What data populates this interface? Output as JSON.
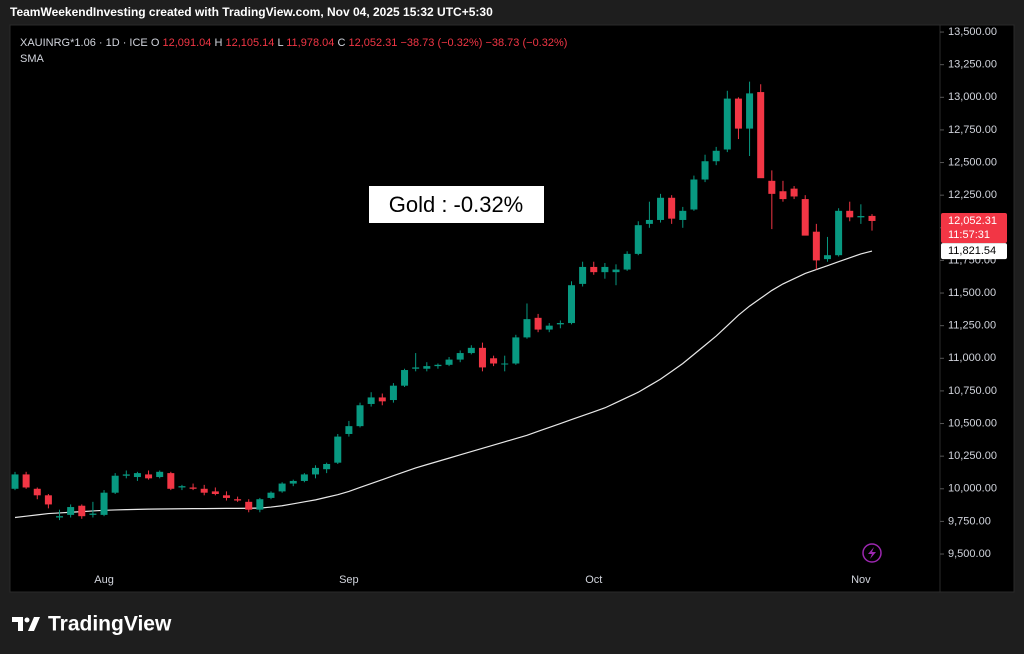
{
  "header": "TeamWeekendInvesting created with TradingView.com, Nov 04, 2025 15:32 UTC+5:30",
  "footer": "TradingView",
  "chart_data": {
    "type": "candlestick",
    "symbol": "XAUINRG*1.06 · 1D · ICE",
    "legend": [
      {
        "label": "O",
        "value": "12,091.04"
      },
      {
        "label": "H",
        "value": "12,105.14"
      },
      {
        "label": "L",
        "value": "11,978.04"
      },
      {
        "label": "C",
        "value": "12,052.31"
      }
    ],
    "change": [
      "−38.73 (−0.32%)",
      "−38.73 (−0.32%)"
    ],
    "annotation": "Gold : -0.32%",
    "up_color": "#089981",
    "down_color": "#f23645",
    "categories": [
      null,
      null,
      null,
      null,
      null,
      null,
      null,
      null,
      "Aug",
      null,
      null,
      null,
      null,
      null,
      null,
      null,
      null,
      null,
      null,
      null,
      null,
      null,
      null,
      null,
      null,
      null,
      null,
      null,
      null,
      null,
      "Sep",
      null,
      null,
      null,
      null,
      null,
      null,
      null,
      null,
      null,
      null,
      null,
      null,
      null,
      null,
      null,
      null,
      null,
      null,
      null,
      null,
      null,
      "Oct",
      null,
      null,
      null,
      null,
      null,
      null,
      null,
      null,
      null,
      null,
      null,
      null,
      null,
      null,
      null,
      null,
      null,
      null,
      null,
      null,
      null,
      null,
      null,
      "Nov",
      null
    ],
    "open": [
      10000,
      10110,
      10000,
      9950,
      9780,
      9800,
      9870,
      9800,
      9800,
      9970,
      10100,
      10090,
      10110,
      10090,
      10120,
      10010,
      10010,
      10000,
      9980,
      9950,
      9920,
      9900,
      9840,
      9930,
      9980,
      10040,
      10060,
      10110,
      10150,
      10200,
      10420,
      10480,
      10650,
      10700,
      10680,
      10790,
      10920,
      10920,
      10940,
      10950,
      10990,
      11040,
      11080,
      11000,
      10960,
      10960,
      11160,
      11310,
      11220,
      11260,
      11270,
      11570,
      11700,
      11660,
      11660,
      11680,
      11800,
      12030,
      12060,
      12230,
      12060,
      12140,
      12370,
      12510,
      12600,
      12990,
      12760,
      13040,
      12360,
      12280,
      12300,
      12220,
      11970,
      11760,
      11790,
      12130,
      12080,
      12091.04
    ],
    "high": [
      10130,
      10130,
      10010,
      9960,
      9840,
      9880,
      9880,
      9900,
      9990,
      10120,
      10140,
      10130,
      10140,
      10140,
      10130,
      10030,
      10040,
      10030,
      10010,
      9980,
      9940,
      9920,
      9930,
      9980,
      10050,
      10070,
      10120,
      10180,
      10200,
      10420,
      10520,
      10660,
      10740,
      10730,
      10810,
      10920,
      11040,
      10970,
      10960,
      11010,
      11060,
      11100,
      11120,
      11020,
      11020,
      11180,
      11420,
      11340,
      11270,
      11290,
      11590,
      11740,
      11740,
      11730,
      11720,
      11820,
      12050,
      12200,
      12260,
      12250,
      12160,
      12400,
      12560,
      12620,
      13050,
      13000,
      13120,
      13100,
      12440,
      12360,
      12320,
      12250,
      12030,
      11930,
      12150,
      12200,
      12180,
      12105.14
    ],
    "low": [
      9990,
      10000,
      9920,
      9850,
      9760,
      9780,
      9770,
      9780,
      9790,
      9960,
      10080,
      10060,
      10070,
      10080,
      9990,
      9990,
      9990,
      9950,
      9950,
      9910,
      9900,
      9820,
      9820,
      9920,
      9970,
      10020,
      10050,
      10080,
      10120,
      10190,
      10400,
      10470,
      10630,
      10640,
      10660,
      10780,
      10900,
      10900,
      10920,
      10940,
      10970,
      11030,
      10900,
      10940,
      10900,
      10950,
      11150,
      11200,
      11200,
      11230,
      11260,
      11550,
      11640,
      11610,
      11560,
      11670,
      11790,
      12000,
      12040,
      12030,
      12000,
      12130,
      12350,
      12480,
      12580,
      12680,
      12550,
      12400,
      11990,
      12200,
      12220,
      11960,
      11680,
      11740,
      11780,
      12050,
      12030,
      11978.04
    ],
    "close": [
      10110,
      10010,
      9950,
      9880,
      9790,
      9860,
      9790,
      9810,
      9970,
      10100,
      10110,
      10120,
      10080,
      10130,
      10000,
      10020,
      10000,
      9970,
      9960,
      9930,
      9910,
      9840,
      9920,
      9970,
      10040,
      10060,
      10110,
      10160,
      10190,
      10400,
      10480,
      10640,
      10700,
      10670,
      10790,
      10910,
      10930,
      10940,
      10950,
      10990,
      11040,
      11080,
      10930,
      10960,
      10960,
      11160,
      11300,
      11220,
      11250,
      11270,
      11560,
      11700,
      11660,
      11700,
      11680,
      11800,
      12020,
      12060,
      12230,
      12070,
      12130,
      12370,
      12510,
      12590,
      12990,
      12760,
      13030,
      12380,
      12260,
      12220,
      12240,
      11940,
      11750,
      11790,
      12130,
      12080,
      12090,
      12052.31
    ],
    "sma": {
      "name": "SMA",
      "color": "#e8e8e8",
      "values": [
        9780,
        9790,
        9800,
        9810,
        9815,
        9820,
        9825,
        9830,
        9835,
        9838,
        9840,
        9842,
        9844,
        9845,
        9846,
        9847,
        9848,
        9848,
        9849,
        9850,
        9850,
        9851,
        9852,
        9860,
        9870,
        9885,
        9900,
        9915,
        9935,
        9955,
        9980,
        10010,
        10040,
        10070,
        10100,
        10130,
        10160,
        10185,
        10210,
        10235,
        10260,
        10285,
        10310,
        10335,
        10360,
        10385,
        10410,
        10440,
        10470,
        10500,
        10530,
        10560,
        10590,
        10620,
        10660,
        10700,
        10740,
        10790,
        10840,
        10900,
        10960,
        11030,
        11100,
        11170,
        11250,
        11330,
        11400,
        11460,
        11520,
        11570,
        11610,
        11650,
        11680,
        11710,
        11740,
        11770,
        11800,
        11821.54
      ]
    },
    "price_tags": [
      {
        "value": 12052.31,
        "label": "12,052.31",
        "countdown": "11:57:31",
        "color": "#f23645"
      },
      {
        "value": 11821.54,
        "label": "11,821.54",
        "color": "#ffffff"
      }
    ],
    "ylim": [
      9209,
      13554
    ],
    "yticks": [
      {
        "value": 9500,
        "label": "9,500.00"
      },
      {
        "value": 9750,
        "label": "9,750.00"
      },
      {
        "value": 10000,
        "label": "10,000.00"
      },
      {
        "value": 10250,
        "label": "10,250.00"
      },
      {
        "value": 10500,
        "label": "10,500.00"
      },
      {
        "value": 10750,
        "label": "10,750.00"
      },
      {
        "value": 11000,
        "label": "11,000.00"
      },
      {
        "value": 11250,
        "label": "11,250.00"
      },
      {
        "value": 11500,
        "label": "11,500.00"
      },
      {
        "value": 11750,
        "label": "11,750.00"
      },
      {
        "value": 12000,
        "label": "12,000.00"
      },
      {
        "value": 12250,
        "label": "12,250.00"
      },
      {
        "value": 12500,
        "label": "12,500.00"
      },
      {
        "value": 12750,
        "label": "12,750.00"
      },
      {
        "value": 13000,
        "label": "13,000.00"
      },
      {
        "value": 13250,
        "label": "13,250.00"
      },
      {
        "value": 13500,
        "label": "13,500.00"
      }
    ]
  }
}
